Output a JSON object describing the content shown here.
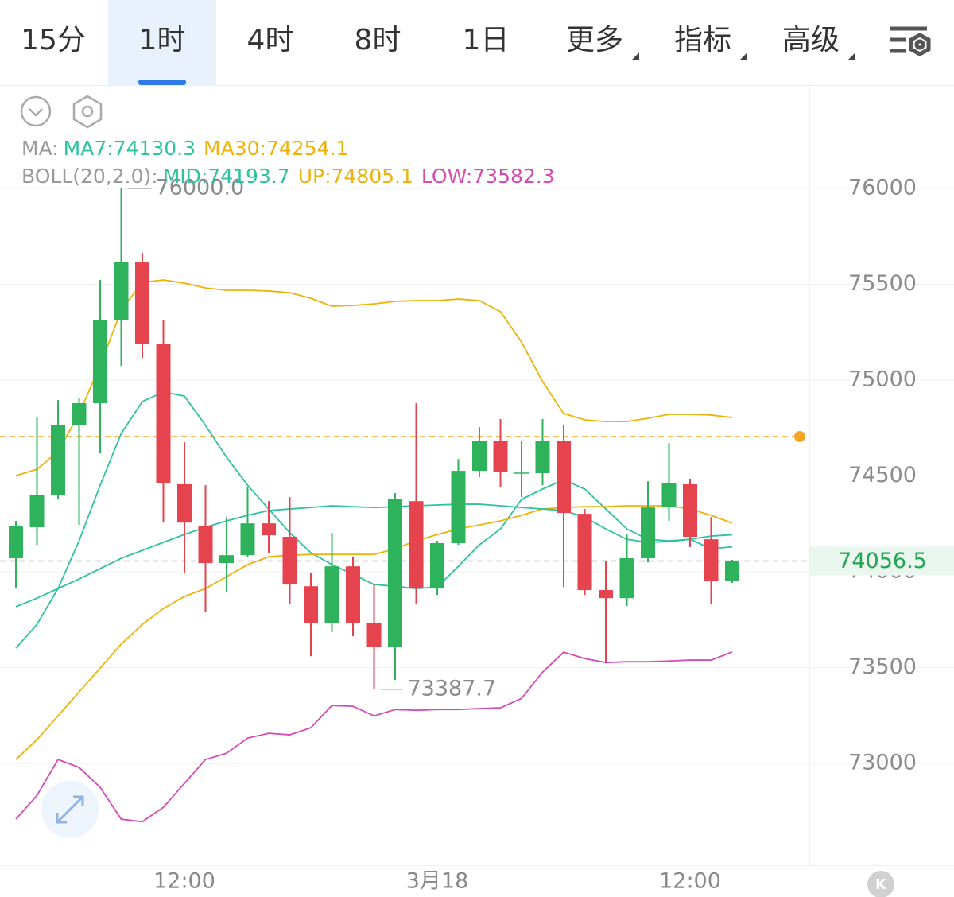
{
  "toolbar": {
    "tabs": [
      "15分",
      "1时",
      "4时",
      "8时",
      "1日",
      "更多",
      "指标",
      "高级"
    ],
    "selected": "1时"
  },
  "badge": "K",
  "chart_data": {
    "type": "candlestick",
    "categories": [
      null,
      null,
      null,
      null,
      null,
      null,
      null,
      null,
      "12:00",
      null,
      null,
      null,
      null,
      null,
      null,
      null,
      null,
      null,
      null,
      null,
      "3月18",
      null,
      null,
      null,
      null,
      null,
      null,
      null,
      null,
      null,
      null,
      null,
      "12:00",
      null,
      null
    ],
    "open": [
      74071,
      74233,
      74403,
      74764,
      74880,
      75315,
      75614,
      75187,
      74457,
      74241,
      74046,
      74087,
      74253,
      74183,
      73925,
      73735,
      74029,
      73735,
      73610,
      74369,
      73913,
      74150,
      74527,
      74685,
      74512,
      74515,
      74685,
      74303,
      73905,
      73863,
      74071,
      74336,
      74457,
      74170,
      73955
    ],
    "high": [
      74266,
      74805,
      74896,
      74909,
      75523,
      76000,
      75664,
      75315,
      74676,
      74452,
      74286,
      74444,
      74369,
      74390,
      73996,
      74204,
      74079,
      73934,
      74411,
      74880,
      74162,
      74589,
      74755,
      74797,
      74681,
      74797,
      74764,
      74328,
      74054,
      74195,
      74473,
      74672,
      74486,
      74286,
      74063
    ],
    "low": [
      73913,
      74141,
      74378,
      74245,
      74618,
      75075,
      75116,
      74257,
      73996,
      73789,
      73892,
      74079,
      74100,
      73830,
      73560,
      73685,
      73664,
      73387.7,
      73436,
      73830,
      73880,
      74141,
      74494,
      74440,
      74390,
      74452,
      73921,
      73880,
      73531,
      73822,
      74050,
      74266,
      74129,
      73830,
      73942
    ],
    "close": [
      74237,
      74403,
      74764,
      74880,
      75315,
      75618,
      75191,
      74461,
      74257,
      74046,
      74087,
      74253,
      74191,
      73934,
      73735,
      74029,
      73735,
      73610,
      74378,
      73913,
      74150,
      74527,
      74685,
      74523,
      74518,
      74685,
      74307,
      73905,
      73863,
      74071,
      74336,
      74461,
      74183,
      73955,
      74056.5
    ],
    "up_color": "#2eb35c",
    "down_color": "#e5444f",
    "overlays": [
      {
        "title": "MA:",
        "series": [
          {
            "name": "MA7:74130.3",
            "color": "#2cc2a2",
            "values": [
              73602,
              73726,
              73913,
              74162,
              74452,
              74722,
              74888,
              74938,
              74917,
              74764,
              74598,
              74452,
              74328,
              74204,
              74100,
              74038,
              73988,
              73934,
              73925,
              73913,
              73921,
              74029,
              74141,
              74224,
              74378,
              74432,
              74481,
              74432,
              74328,
              74224,
              74170,
              74162,
              74170,
              74121,
              74130.3
            ]
          },
          {
            "name": "MA30:74254.1",
            "color": "#eeb20a",
            "values": [
              73021,
              73125,
              73249,
              73374,
              73498,
              73623,
              73726,
              73809,
              73872,
              73913,
              73975,
              74038,
              74079,
              74087,
              74091,
              74091,
              74091,
              74091,
              74121,
              74162,
              74195,
              74224,
              74245,
              74266,
              74295,
              74328,
              74336,
              74340,
              74340,
              74345,
              74345,
              74345,
              74328,
              74295,
              74254.1
            ]
          }
        ]
      },
      {
        "title": "BOLL(20,2.0):",
        "series": [
          {
            "name": "MID:74193.7",
            "color": "#2cc2a2",
            "values": [
              73818,
              73863,
              73913,
              73963,
              74017,
              74071,
              74112,
              74154,
              74195,
              74233,
              74266,
              74295,
              74320,
              74328,
              74336,
              74345,
              74340,
              74336,
              74340,
              74345,
              74349,
              74353,
              74353,
              74345,
              74336,
              74328,
              74320,
              74286,
              74224,
              74170,
              74154,
              74158,
              74170,
              74187,
              74193.7
            ]
          },
          {
            "name": "UP:74805.1",
            "color": "#eeb20a",
            "values": [
              74502,
              74535,
              74627,
              74826,
              75075,
              75365,
              75510,
              75523,
              75506,
              75481,
              75469,
              75469,
              75465,
              75456,
              75427,
              75386,
              75390,
              75398,
              75411,
              75415,
              75415,
              75423,
              75415,
              75357,
              75199,
              74992,
              74826,
              74793,
              74784,
              74784,
              74801,
              74822,
              74822,
              74818,
              74805.1
            ]
          },
          {
            "name": "LOW:73582.3",
            "color": "#d64ab4",
            "values": [
              72710,
              72834,
              73021,
              72980,
              72876,
              72710,
              72697,
              72772,
              72897,
              73021,
              73054,
              73133,
              73158,
              73150,
              73187,
              73303,
              73299,
              73249,
              73282,
              73278,
              73282,
              73282,
              73287,
              73291,
              73340,
              73477,
              73581,
              73548,
              73527,
              73531,
              73531,
              73535,
              73540,
              73540,
              73582.3
            ]
          }
        ]
      }
    ],
    "high_label": {
      "value": 76000,
      "label": "76000.0"
    },
    "low_label": 73387.7,
    "last_price": 74056.5,
    "alert_price": 74706,
    "alert_color": "#f5a623",
    "ylim": [
      72470,
      76535
    ],
    "yticks": [
      73000,
      73500,
      74000,
      74500,
      75000,
      75500,
      76000
    ],
    "grid": true
  }
}
